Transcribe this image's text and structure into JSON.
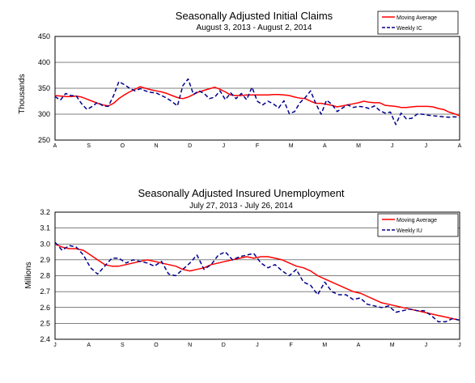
{
  "chart_data": [
    {
      "type": "line",
      "title": "Seasonally Adjusted Initial Claims",
      "subtitle": "August 3, 2013  -  August 2, 2014",
      "ylabel": "Thousands",
      "xlabel": "",
      "ylim": [
        250,
        450
      ],
      "yticks": [
        "250",
        "300",
        "350",
        "400",
        "450"
      ],
      "grid": "horizontal",
      "legend_position": "top-right",
      "xticks": [
        "A",
        "S",
        "O",
        "N",
        "D",
        "J",
        "F",
        "M",
        "A",
        "M",
        "J",
        "J",
        "A"
      ],
      "series": [
        {
          "name": "Moving Average",
          "color": "#ff0000",
          "style": "solid",
          "values": [
            336,
            335,
            334,
            334,
            335,
            333,
            329,
            325,
            321,
            318,
            316,
            321,
            330,
            337,
            343,
            348,
            353,
            350,
            347,
            345,
            343,
            340,
            336,
            332,
            330,
            333,
            338,
            343,
            346,
            349,
            352,
            348,
            343,
            337,
            336,
            336,
            337,
            337,
            337,
            337,
            337,
            338,
            338,
            337,
            336,
            333,
            331,
            330,
            325,
            321,
            321,
            319,
            317,
            314,
            316,
            318,
            320,
            322,
            325,
            323,
            322,
            322,
            317,
            316,
            315,
            313,
            313,
            314,
            315,
            315,
            315,
            314,
            311,
            309,
            304,
            301,
            297
          ]
        },
        {
          "name": "Weekly IC",
          "color": "#00008b",
          "style": "dashed",
          "values": [
            334,
            327,
            340,
            336,
            335,
            320,
            309,
            315,
            323,
            316,
            315,
            336,
            363,
            357,
            350,
            345,
            349,
            345,
            342,
            341,
            336,
            331,
            324,
            316,
            355,
            368,
            338,
            345,
            340,
            330,
            333,
            345,
            328,
            341,
            330,
            340,
            328,
            352,
            325,
            318,
            325,
            320,
            312,
            326,
            301,
            305,
            322,
            332,
            345,
            320,
            300,
            327,
            319,
            305,
            312,
            318,
            313,
            315,
            314,
            311,
            316,
            307,
            302,
            304,
            280,
            302,
            291,
            292,
            300,
            300,
            298,
            297,
            296,
            295,
            294,
            295,
            294
          ]
        }
      ]
    },
    {
      "type": "line",
      "title": "Seasonally Adjusted Insured Unemployment",
      "subtitle": "July 27, 2013  -  July 26, 2014",
      "ylabel": "Millions",
      "xlabel": "",
      "ylim": [
        2.4,
        3.2
      ],
      "yticks": [
        "2.4",
        "2.5",
        "2.6",
        "2.7",
        "2.8",
        "2.9",
        "3.0",
        "3.1",
        "3.2"
      ],
      "grid": "horizontal",
      "legend_position": "top-right",
      "xticks": [
        "J",
        "A",
        "S",
        "O",
        "N",
        "D",
        "J",
        "F",
        "M",
        "A",
        "M",
        "J",
        "J"
      ],
      "series": [
        {
          "name": "Moving Average",
          "color": "#ff0000",
          "style": "solid",
          "values": [
            3.0,
            2.98,
            2.97,
            2.97,
            2.96,
            2.93,
            2.9,
            2.87,
            2.86,
            2.86,
            2.87,
            2.88,
            2.89,
            2.9,
            2.89,
            2.88,
            2.87,
            2.86,
            2.84,
            2.83,
            2.84,
            2.85,
            2.87,
            2.88,
            2.89,
            2.9,
            2.91,
            2.92,
            2.91,
            2.92,
            2.92,
            2.91,
            2.9,
            2.88,
            2.86,
            2.85,
            2.83,
            2.8,
            2.78,
            2.76,
            2.74,
            2.72,
            2.7,
            2.69,
            2.67,
            2.65,
            2.63,
            2.62,
            2.61,
            2.6,
            2.59,
            2.58,
            2.57,
            2.56,
            2.55,
            2.54,
            2.53,
            2.52
          ]
        },
        {
          "name": "Weekly IU",
          "color": "#00008b",
          "style": "dashed",
          "values": [
            3.01,
            2.96,
            2.99,
            2.98,
            2.93,
            2.85,
            2.81,
            2.86,
            2.91,
            2.91,
            2.88,
            2.9,
            2.89,
            2.88,
            2.86,
            2.89,
            2.81,
            2.8,
            2.84,
            2.88,
            2.93,
            2.84,
            2.87,
            2.93,
            2.95,
            2.9,
            2.92,
            2.93,
            2.94,
            2.88,
            2.85,
            2.87,
            2.83,
            2.8,
            2.84,
            2.76,
            2.74,
            2.68,
            2.76,
            2.7,
            2.68,
            2.68,
            2.65,
            2.66,
            2.62,
            2.61,
            2.6,
            2.61,
            2.57,
            2.58,
            2.59,
            2.58,
            2.58,
            2.55,
            2.51,
            2.51,
            2.53,
            2.52
          ]
        }
      ]
    }
  ]
}
